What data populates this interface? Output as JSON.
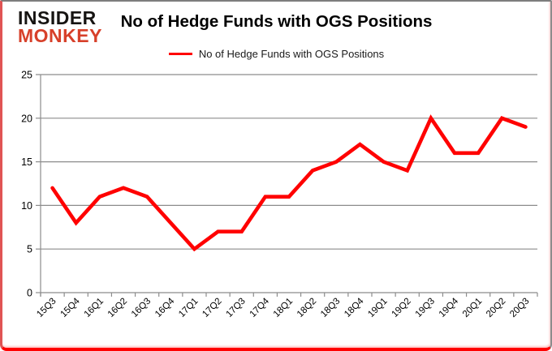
{
  "brand": {
    "line1": "INSIDER",
    "line2": "MONKEY"
  },
  "header": {
    "title": "No of Hedge Funds with OGS Positions"
  },
  "legend": {
    "label": "No of Hedge Funds with OGS Positions"
  },
  "colors": {
    "line": "#ff0000",
    "grid": "#8c8c8c",
    "axis": "#8c8c8c",
    "tick_text": "#000000",
    "brand_black": "#161412",
    "brand_red": "#d7402a"
  },
  "chart_data": {
    "type": "line",
    "title": "No of Hedge Funds with OGS Positions",
    "categories": [
      "15Q3",
      "15Q4",
      "16Q1",
      "16Q2",
      "16Q3",
      "16Q4",
      "17Q1",
      "17Q2",
      "17Q3",
      "17Q4",
      "18Q1",
      "18Q2",
      "18Q3",
      "18Q4",
      "19Q1",
      "19Q2",
      "19Q3",
      "19Q4",
      "20Q1",
      "20Q2",
      "20Q3"
    ],
    "series": [
      {
        "name": "No of Hedge Funds with OGS Positions",
        "color": "#ff0000",
        "values": [
          12,
          8,
          11,
          12,
          11,
          8,
          5,
          7,
          7,
          11,
          11,
          14,
          15,
          17,
          15,
          14,
          20,
          16,
          16,
          20,
          19
        ]
      }
    ],
    "xlabel": "",
    "ylabel": "",
    "ylim": [
      0,
      25
    ],
    "ytick_step": 5,
    "grid": true,
    "legend_position": "top-center"
  }
}
